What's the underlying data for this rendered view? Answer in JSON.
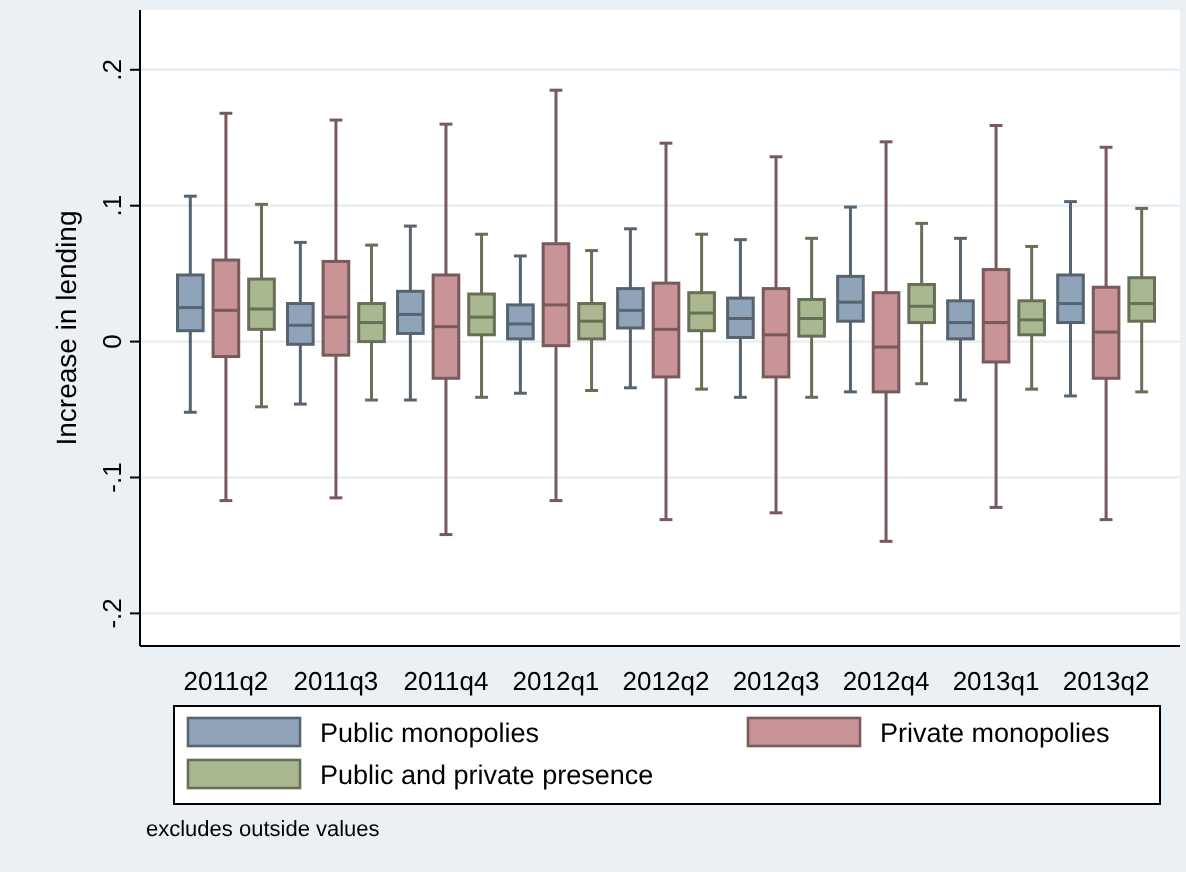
{
  "chart_data": {
    "type": "box",
    "ylabel": "Increase in lending",
    "categories": [
      "2011q2",
      "2011q3",
      "2011q4",
      "2012q1",
      "2012q2",
      "2012q3",
      "2012q4",
      "2013q1",
      "2013q2"
    ],
    "ylim": [
      -0.224,
      0.244
    ],
    "yticks": [
      {
        "value": -0.2,
        "label": "-.2"
      },
      {
        "value": -0.1,
        "label": "-.1"
      },
      0,
      {
        "value": 0.1,
        "label": ".1"
      },
      {
        "value": 0.2,
        "label": ".2"
      }
    ],
    "grid": "y",
    "legend": "bottom",
    "annotations": [
      "excludes outside values"
    ],
    "series": [
      {
        "name": "Public monopolies",
        "color": "#90a4b9",
        "boxes": [
          {
            "low": -0.052,
            "q1": 0.008,
            "median": 0.025,
            "q3": 0.049,
            "high": 0.107
          },
          {
            "low": -0.046,
            "q1": -0.002,
            "median": 0.012,
            "q3": 0.028,
            "high": 0.073
          },
          {
            "low": -0.043,
            "q1": 0.006,
            "median": 0.02,
            "q3": 0.037,
            "high": 0.085
          },
          {
            "low": -0.038,
            "q1": 0.002,
            "median": 0.013,
            "q3": 0.027,
            "high": 0.063
          },
          {
            "low": -0.034,
            "q1": 0.01,
            "median": 0.023,
            "q3": 0.039,
            "high": 0.083
          },
          {
            "low": -0.041,
            "q1": 0.003,
            "median": 0.017,
            "q3": 0.032,
            "high": 0.075
          },
          {
            "low": -0.037,
            "q1": 0.015,
            "median": 0.029,
            "q3": 0.048,
            "high": 0.099
          },
          {
            "low": -0.043,
            "q1": 0.002,
            "median": 0.014,
            "q3": 0.03,
            "high": 0.076
          },
          {
            "low": -0.04,
            "q1": 0.014,
            "median": 0.028,
            "q3": 0.049,
            "high": 0.103
          }
        ]
      },
      {
        "name": "Private monopolies",
        "color": "#c89497",
        "boxes": [
          {
            "low": -0.117,
            "q1": -0.011,
            "median": 0.023,
            "q3": 0.06,
            "high": 0.168
          },
          {
            "low": -0.115,
            "q1": -0.01,
            "median": 0.018,
            "q3": 0.059,
            "high": 0.163
          },
          {
            "low": -0.142,
            "q1": -0.027,
            "median": 0.011,
            "q3": 0.049,
            "high": 0.16
          },
          {
            "low": -0.117,
            "q1": -0.003,
            "median": 0.027,
            "q3": 0.072,
            "high": 0.185
          },
          {
            "low": -0.131,
            "q1": -0.026,
            "median": 0.009,
            "q3": 0.043,
            "high": 0.146
          },
          {
            "low": -0.126,
            "q1": -0.026,
            "median": 0.005,
            "q3": 0.039,
            "high": 0.136
          },
          {
            "low": -0.147,
            "q1": -0.037,
            "median": -0.004,
            "q3": 0.036,
            "high": 0.147
          },
          {
            "low": -0.122,
            "q1": -0.015,
            "median": 0.014,
            "q3": 0.053,
            "high": 0.159
          },
          {
            "low": -0.131,
            "q1": -0.027,
            "median": 0.007,
            "q3": 0.04,
            "high": 0.143
          }
        ]
      },
      {
        "name": "Public and private presence",
        "color": "#a9b890",
        "boxes": [
          {
            "low": -0.048,
            "q1": 0.009,
            "median": 0.024,
            "q3": 0.046,
            "high": 0.101
          },
          {
            "low": -0.043,
            "q1": 0,
            "median": 0.014,
            "q3": 0.028,
            "high": 0.071
          },
          {
            "low": -0.041,
            "q1": 0.005,
            "median": 0.018,
            "q3": 0.035,
            "high": 0.079
          },
          {
            "low": -0.036,
            "q1": 0.002,
            "median": 0.015,
            "q3": 0.028,
            "high": 0.067
          },
          {
            "low": -0.035,
            "q1": 0.008,
            "median": 0.021,
            "q3": 0.036,
            "high": 0.079
          },
          {
            "low": -0.041,
            "q1": 0.004,
            "median": 0.017,
            "q3": 0.031,
            "high": 0.076
          },
          {
            "low": -0.031,
            "q1": 0.014,
            "median": 0.026,
            "q3": 0.042,
            "high": 0.087
          },
          {
            "low": -0.035,
            "q1": 0.005,
            "median": 0.016,
            "q3": 0.03,
            "high": 0.07
          },
          {
            "low": -0.037,
            "q1": 0.015,
            "median": 0.028,
            "q3": 0.047,
            "high": 0.098
          }
        ]
      }
    ]
  }
}
